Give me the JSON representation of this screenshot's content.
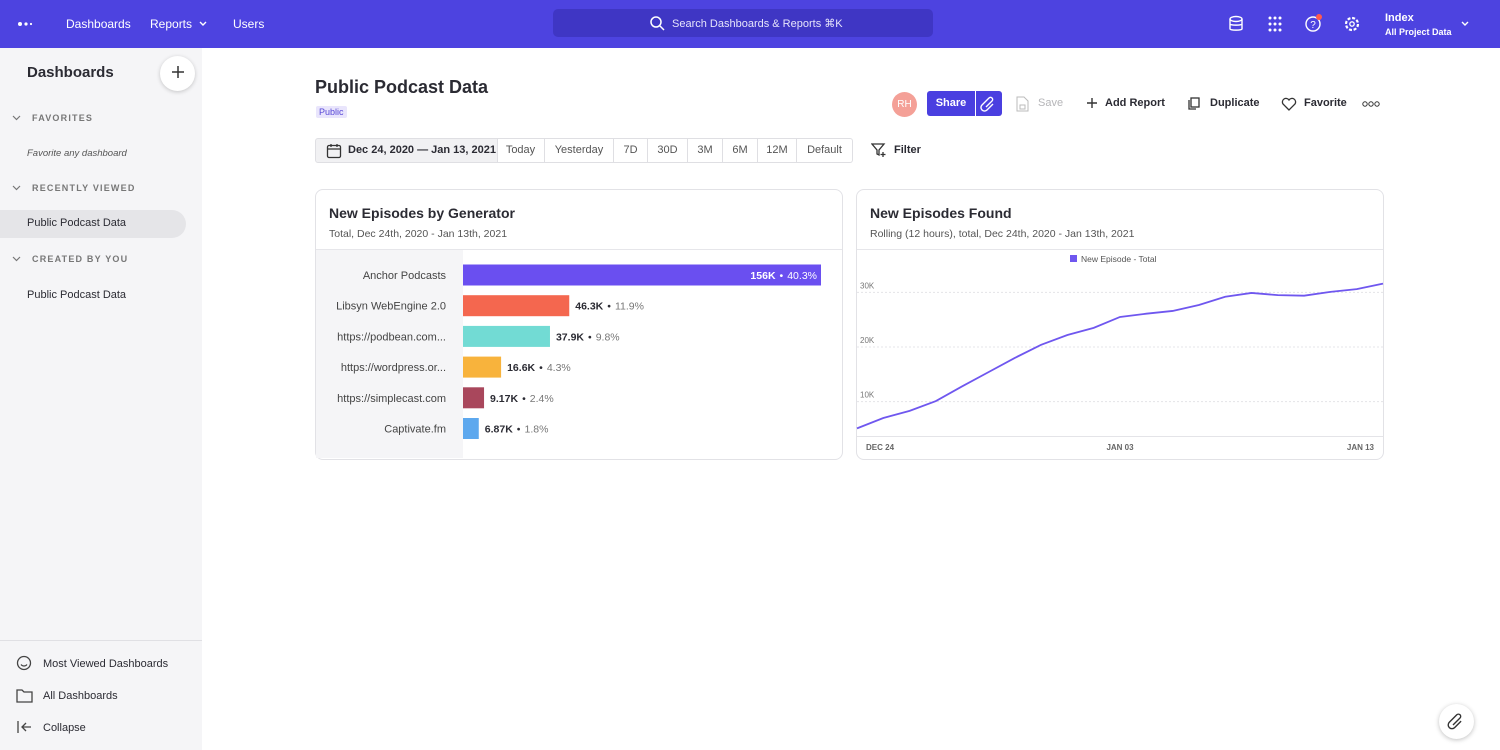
{
  "nav": {
    "links": [
      "Dashboards",
      "Reports",
      "Users"
    ],
    "search": "Search Dashboards & Reports ⌘K",
    "project": {
      "name": "Index",
      "scope": "All Project Data"
    }
  },
  "sidebar": {
    "title": "Dashboards",
    "sections": [
      {
        "title": "FAVORITES",
        "items": [
          "Favorite any dashboard"
        ]
      },
      {
        "title": "RECENTLY VIEWED",
        "items": [
          "Public Podcast Data"
        ]
      },
      {
        "title": "CREATED BY YOU",
        "items": [
          "Public Podcast Data"
        ]
      }
    ],
    "footer": [
      "Most Viewed Dashboards",
      "All Dashboards",
      "Collapse"
    ]
  },
  "header": {
    "title": "Public Podcast Data",
    "badge": "Public",
    "avatar": "RH",
    "actions": [
      "Share",
      "Save",
      "Add Report",
      "Duplicate",
      "Favorite"
    ]
  },
  "date_range": {
    "range": "Dec 24, 2020 — Jan 13, 2021",
    "presets": [
      "Today",
      "Yesterday",
      "7D",
      "30D",
      "3M",
      "6M",
      "12M",
      "Default"
    ],
    "filter": "Filter"
  },
  "chart_data": [
    {
      "type": "bar",
      "orientation": "horizontal",
      "title": "New Episodes by Generator",
      "subtitle": "Total, Dec 24th, 2020 - Jan 13th, 2021",
      "categories": [
        "Anchor Podcasts",
        "Libsyn WebEngine 2.0",
        "https://podbean.com...",
        "https://wordpress.or...",
        "https://simplecast.com",
        "Captivate.fm"
      ],
      "values": [
        156000,
        46300,
        37900,
        16600,
        9170,
        6870
      ],
      "value_labels": [
        "156K",
        "46.3K",
        "37.9K",
        "16.6K",
        "9.17K",
        "6.87K"
      ],
      "separator": "•",
      "shares": [
        40.3,
        11.9,
        9.8,
        4.3,
        2.4,
        1.8
      ],
      "share_labels": [
        "40.3%",
        "11.9%",
        "9.8%",
        "4.3%",
        "2.4%",
        "1.8%"
      ],
      "colors": [
        "#6a4ff0",
        "#f4674f",
        "#72dbd4",
        "#f8b33c",
        "#a9475c",
        "#5da8ee"
      ]
    },
    {
      "type": "line",
      "title": "New Episodes Found",
      "subtitle": "Rolling (12 hours), total, Dec 24th, 2020 - Jan 13th, 2021",
      "categories": [
        "DEC 24",
        null,
        null,
        null,
        null,
        null,
        null,
        null,
        null,
        null,
        "JAN 03",
        null,
        null,
        null,
        null,
        null,
        null,
        null,
        null,
        null,
        "JAN 13"
      ],
      "series": [
        {
          "name": "New Episode - Total",
          "color": "#6f57ef",
          "values": [
            5100,
            7000,
            8300,
            10100,
            12800,
            15400,
            18000,
            20400,
            22200,
            23500,
            25500,
            26100,
            26600,
            27700,
            29200,
            29900,
            29500,
            29400,
            30100,
            30600,
            31600
          ]
        }
      ],
      "ylim": [
        3700,
        34100
      ],
      "yticks": [
        {
          "value": 10000,
          "label": "10K"
        },
        {
          "value": 20000,
          "label": "20K"
        },
        {
          "value": 30000,
          "label": "30K"
        }
      ],
      "grid": true,
      "legend": "top"
    }
  ]
}
